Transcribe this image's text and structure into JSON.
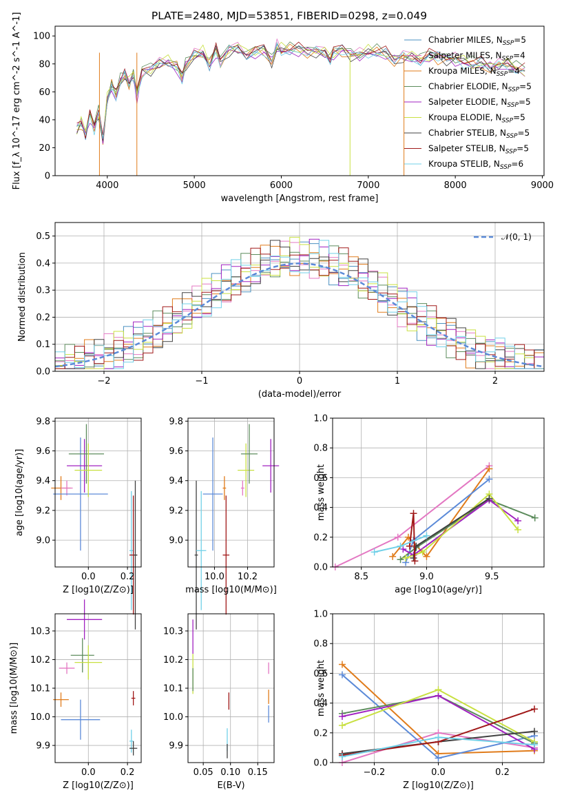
{
  "figure_title": "PLATE=2480, MJD=53851, FIBERID=0298, z=0.049",
  "models": [
    {
      "name": "Chabrier MILES",
      "n_ssp": "5",
      "color": "#4a90c0"
    },
    {
      "name": "Salpeter MILES",
      "n_ssp": "4",
      "color": "#e377c2"
    },
    {
      "name": "Kroupa MILES",
      "n_ssp": "4",
      "color": "#e07b1a"
    },
    {
      "name": "Chabrier ELODIE",
      "n_ssp": "5",
      "color": "#5b8b5b"
    },
    {
      "name": "Salpeter ELODIE",
      "n_ssp": "5",
      "color": "#a020c0"
    },
    {
      "name": "Kroupa ELODIE",
      "n_ssp": "5",
      "color": "#c8e040"
    },
    {
      "name": "Chabrier STELIB",
      "n_ssp": "5",
      "color": "#404040"
    },
    {
      "name": "Salpeter STELIB",
      "n_ssp": "5",
      "color": "#a01818"
    },
    {
      "name": "Kroupa STELIB",
      "n_ssp": "6",
      "color": "#70d0e8"
    }
  ],
  "chart_data": [
    {
      "id": "spectrum",
      "type": "line",
      "xlabel": "wavelength [Angstrom, rest frame]",
      "ylabel": "Flux [f_λ 10^-17 erg cm^-2 s^-1 A^-1]",
      "xlim": [
        3400,
        9020
      ],
      "ylim": [
        0,
        107
      ],
      "xticks": [
        4000,
        5000,
        6000,
        7000,
        8000,
        9000
      ],
      "yticks": [
        0,
        20,
        40,
        60,
        80,
        100
      ],
      "spectrum_x": [
        3650,
        3700,
        3750,
        3800,
        3850,
        3900,
        3950,
        4000,
        4050,
        4100,
        4150,
        4200,
        4250,
        4300,
        4340,
        4400,
        4500,
        4600,
        4700,
        4800,
        4860,
        4900,
        5000,
        5100,
        5175,
        5250,
        5300,
        5400,
        5500,
        5600,
        5700,
        5800,
        5890,
        5950,
        6000,
        6100,
        6200,
        6300,
        6400,
        6500,
        6563,
        6600,
        6700,
        6800,
        6900,
        7000,
        7100,
        7200,
        7300,
        7400,
        7500,
        7600,
        7700,
        7800,
        7900,
        8000,
        8100,
        8200,
        8300,
        8400,
        8500,
        8600,
        8700,
        8800
      ],
      "spectrum_y": [
        33,
        38,
        30,
        44,
        35,
        45,
        25,
        55,
        65,
        58,
        68,
        72,
        66,
        73,
        58,
        75,
        76,
        80,
        82,
        78,
        70,
        79,
        86,
        88,
        80,
        90,
        82,
        90,
        91,
        87,
        89,
        90,
        82,
        92,
        90,
        91,
        90,
        89,
        89,
        88,
        84,
        88,
        90,
        87,
        86,
        89,
        89,
        87,
        83,
        85,
        85,
        83,
        86,
        85,
        84,
        83,
        82,
        80,
        80,
        78,
        79,
        80,
        77,
        75
      ],
      "series_shift": [
        0,
        1.5,
        -1.5,
        2.5,
        -2.5,
        1,
        -1,
        2,
        -2
      ]
    },
    {
      "id": "residuals",
      "type": "line",
      "xlabel": "(data-model)/error",
      "ylabel": "Normed distribution",
      "xlim": [
        -2.5,
        2.5
      ],
      "ylim": [
        0,
        0.55
      ],
      "xticks": [
        -2,
        -1,
        0,
        1,
        2
      ],
      "yticks": [
        0.0,
        0.1,
        0.2,
        0.3,
        0.4,
        0.5
      ],
      "gaussian_label": "𝒩(0, 1)",
      "gaussian_color": "#5b8ad8"
    },
    {
      "id": "age_vs_Z",
      "type": "scatter",
      "xlabel": "Z [log10(Z/Z⊙)]",
      "ylabel": "age [log10(age/yr)]",
      "xlim": [
        -0.17,
        0.27
      ],
      "ylim": [
        8.82,
        9.82
      ],
      "xticks": [
        0.0,
        0.2
      ],
      "yticks": [
        9.0,
        9.2,
        9.4,
        9.6,
        9.8
      ],
      "points": [
        {
          "x": -0.14,
          "y": 9.35,
          "xerr": 0.05,
          "yerr": 0.08,
          "color": "#e07b1a"
        },
        {
          "x": -0.11,
          "y": 9.35,
          "xerr": 0.03,
          "yerr": 0.05,
          "color": "#e377c2"
        },
        {
          "x": -0.04,
          "y": 9.31,
          "xerr": 0.14,
          "yerr": 0.38,
          "color": "#5b8ad8"
        },
        {
          "x": -0.02,
          "y": 9.5,
          "xerr": 0.09,
          "yerr": 0.18,
          "color": "#a020c0"
        },
        {
          "x": -0.01,
          "y": 9.58,
          "xerr": 0.09,
          "yerr": 0.2,
          "color": "#5b8b5b"
        },
        {
          "x": 0.0,
          "y": 9.47,
          "xerr": 0.07,
          "yerr": 0.18,
          "color": "#c8e040"
        },
        {
          "x": 0.22,
          "y": 8.93,
          "xerr": 0.01,
          "yerr": 0.4,
          "color": "#70d0e8"
        },
        {
          "x": 0.23,
          "y": 8.9,
          "xerr": 0.02,
          "yerr": 0.4,
          "color": "#a01818"
        },
        {
          "x": 0.24,
          "y": 8.9,
          "xerr": 0.01,
          "yerr": 0.5,
          "color": "#404040"
        }
      ]
    },
    {
      "id": "age_vs_mass",
      "type": "scatter",
      "xlabel": "mass [log10(M/M⊙)]",
      "ylabel": "",
      "xlim": [
        9.84,
        10.36
      ],
      "ylim": [
        8.82,
        9.82
      ],
      "xticks": [
        10.0,
        10.2
      ],
      "yticks": [
        9.0,
        9.2,
        9.4,
        9.6,
        9.8
      ],
      "points": [
        {
          "x": 9.89,
          "y": 8.9,
          "xerr": 0.01,
          "yerr": 0.5,
          "color": "#404040"
        },
        {
          "x": 9.92,
          "y": 8.93,
          "xerr": 0.03,
          "yerr": 0.4,
          "color": "#70d0e8"
        },
        {
          "x": 9.99,
          "y": 9.31,
          "xerr": 0.06,
          "yerr": 0.38,
          "color": "#5b8ad8"
        },
        {
          "x": 10.06,
          "y": 9.35,
          "xerr": 0.01,
          "yerr": 0.08,
          "color": "#e07b1a"
        },
        {
          "x": 10.07,
          "y": 8.9,
          "xerr": 0.02,
          "yerr": 0.4,
          "color": "#a01818"
        },
        {
          "x": 10.17,
          "y": 9.35,
          "xerr": 0.01,
          "yerr": 0.05,
          "color": "#e377c2"
        },
        {
          "x": 10.19,
          "y": 9.47,
          "xerr": 0.05,
          "yerr": 0.18,
          "color": "#c8e040"
        },
        {
          "x": 10.21,
          "y": 9.58,
          "xerr": 0.05,
          "yerr": 0.2,
          "color": "#5b8b5b"
        },
        {
          "x": 10.34,
          "y": 9.5,
          "xerr": 0.05,
          "yerr": 0.18,
          "color": "#a020c0"
        }
      ]
    },
    {
      "id": "massweight_vs_age",
      "type": "line",
      "xlabel": "age [log10(age/yr)]",
      "ylabel": "mass weight",
      "xlim": [
        8.28,
        9.9
      ],
      "ylim": [
        0,
        1.0
      ],
      "xticks": [
        8.5,
        9.0,
        9.5
      ],
      "yticks": [
        0.0,
        0.2,
        0.4,
        0.6,
        0.8,
        1.0
      ],
      "lines": [
        {
          "color": "#e377c2",
          "x": [
            8.3,
            8.78,
            9.48
          ],
          "y": [
            0.0,
            0.2,
            0.68
          ]
        },
        {
          "color": "#e07b1a",
          "x": [
            8.74,
            8.86,
            9.0,
            9.48
          ],
          "y": [
            0.07,
            0.2,
            0.07,
            0.66
          ]
        },
        {
          "color": "#5b8ad8",
          "x": [
            8.84,
            8.9,
            9.48
          ],
          "y": [
            0.03,
            0.18,
            0.59
          ]
        },
        {
          "color": "#5b8b5b",
          "x": [
            8.8,
            8.92,
            9.48,
            9.83
          ],
          "y": [
            0.05,
            0.13,
            0.45,
            0.33
          ]
        },
        {
          "color": "#a020c0",
          "x": [
            8.82,
            8.9,
            9.48,
            9.7
          ],
          "y": [
            0.12,
            0.08,
            0.45,
            0.31
          ]
        },
        {
          "color": "#c8e040",
          "x": [
            8.84,
            8.97,
            9.48,
            9.7
          ],
          "y": [
            0.06,
            0.1,
            0.49,
            0.25
          ]
        },
        {
          "color": "#404040",
          "x": [
            8.9,
            8.92,
            9.48
          ],
          "y": [
            0.06,
            0.14,
            0.46
          ]
        },
        {
          "color": "#a01818",
          "x": [
            8.87,
            8.9,
            8.91
          ],
          "y": [
            0.14,
            0.36,
            0.04
          ]
        },
        {
          "color": "#70d0e8",
          "x": [
            8.6,
            8.8,
            9.0
          ],
          "y": [
            0.1,
            0.14,
            0.21
          ]
        }
      ]
    },
    {
      "id": "mass_vs_Z",
      "type": "scatter",
      "xlabel": "Z [log10(Z/Z⊙)]",
      "ylabel": "mass [log10(M/M⊙)]",
      "xlim": [
        -0.17,
        0.27
      ],
      "ylim": [
        9.84,
        10.36
      ],
      "xticks": [
        0.0,
        0.2
      ],
      "yticks": [
        9.9,
        10.0,
        10.1,
        10.2,
        10.3
      ],
      "points": [
        {
          "x": -0.14,
          "y": 10.06,
          "xerr": 0.04,
          "yerr": 0.025,
          "color": "#e07b1a"
        },
        {
          "x": -0.11,
          "y": 10.17,
          "xerr": 0.04,
          "yerr": 0.02,
          "color": "#e377c2"
        },
        {
          "x": -0.04,
          "y": 9.99,
          "xerr": 0.1,
          "yerr": 0.07,
          "color": "#5b8ad8"
        },
        {
          "x": -0.02,
          "y": 10.34,
          "xerr": 0.09,
          "yerr": 0.07,
          "color": "#a020c0"
        },
        {
          "x": -0.03,
          "y": 10.215,
          "xerr": 0.06,
          "yerr": 0.06,
          "color": "#5b8b5b"
        },
        {
          "x": 0.0,
          "y": 10.19,
          "xerr": 0.07,
          "yerr": 0.06,
          "color": "#c8e040"
        },
        {
          "x": 0.22,
          "y": 9.915,
          "xerr": 0.01,
          "yerr": 0.04,
          "color": "#70d0e8"
        },
        {
          "x": 0.23,
          "y": 10.065,
          "xerr": 0.01,
          "yerr": 0.025,
          "color": "#a01818"
        },
        {
          "x": 0.23,
          "y": 9.89,
          "xerr": 0.02,
          "yerr": 0.025,
          "color": "#404040"
        }
      ]
    },
    {
      "id": "mass_vs_ebv",
      "type": "scatter",
      "xlabel": "E(B-V)",
      "ylabel": "",
      "xlim": [
        0.022,
        0.18
      ],
      "ylim": [
        9.84,
        10.36
      ],
      "xticks": [
        0.05,
        0.1,
        0.15
      ],
      "yticks": [
        9.9,
        10.0,
        10.1,
        10.2,
        10.3
      ],
      "points": [
        {
          "x": 0.031,
          "y": 10.28,
          "xerr": 0,
          "yerr": 0.06,
          "color": "#a020c0"
        },
        {
          "x": 0.031,
          "y": 10.15,
          "xerr": 0,
          "yerr": 0.07,
          "color": "#c8e040"
        },
        {
          "x": 0.031,
          "y": 10.13,
          "xerr": 0,
          "yerr": 0.04,
          "color": "#5b8b5b"
        },
        {
          "x": 0.094,
          "y": 9.92,
          "xerr": 0,
          "yerr": 0.04,
          "color": "#70d0e8"
        },
        {
          "x": 0.094,
          "y": 9.88,
          "xerr": 0,
          "yerr": 0.025,
          "color": "#404040"
        },
        {
          "x": 0.097,
          "y": 10.055,
          "xerr": 0,
          "yerr": 0.03,
          "color": "#a01818"
        },
        {
          "x": 0.17,
          "y": 10.07,
          "xerr": 0,
          "yerr": 0.025,
          "color": "#e07b1a"
        },
        {
          "x": 0.17,
          "y": 10.17,
          "xerr": 0,
          "yerr": 0.02,
          "color": "#e377c2"
        },
        {
          "x": 0.17,
          "y": 10.01,
          "xerr": 0,
          "yerr": 0.03,
          "color": "#5b8ad8"
        }
      ]
    },
    {
      "id": "massweight_vs_Z",
      "type": "line",
      "xlabel": "Z [log10(Z/Z⊙)]",
      "ylabel": "mass weight",
      "xlim": [
        -0.33,
        0.33
      ],
      "ylim": [
        0,
        1.0
      ],
      "xticks": [
        -0.2,
        0.0,
        0.2
      ],
      "yticks": [
        0.0,
        0.2,
        0.4,
        0.6,
        0.8,
        1.0
      ],
      "lines": [
        {
          "color": "#e377c2",
          "x": [
            -0.3,
            0.0,
            0.3
          ],
          "y": [
            0.0,
            0.2,
            0.1
          ]
        },
        {
          "color": "#e07b1a",
          "x": [
            -0.3,
            0.0,
            0.3
          ],
          "y": [
            0.66,
            0.06,
            0.08
          ]
        },
        {
          "color": "#5b8ad8",
          "x": [
            -0.3,
            0.0,
            0.3
          ],
          "y": [
            0.59,
            0.03,
            0.18
          ]
        },
        {
          "color": "#5b8b5b",
          "x": [
            -0.3,
            0.0,
            0.3
          ],
          "y": [
            0.33,
            0.45,
            0.13
          ]
        },
        {
          "color": "#a020c0",
          "x": [
            -0.3,
            0.0,
            0.3
          ],
          "y": [
            0.31,
            0.45,
            0.09
          ]
        },
        {
          "color": "#c8e040",
          "x": [
            -0.3,
            0.0,
            0.3
          ],
          "y": [
            0.25,
            0.49,
            0.14
          ]
        },
        {
          "color": "#404040",
          "x": [
            -0.3,
            0.0,
            0.3
          ],
          "y": [
            0.06,
            0.14,
            0.21
          ]
        },
        {
          "color": "#a01818",
          "x": [
            -0.3,
            0.0,
            0.3
          ],
          "y": [
            0.05,
            0.14,
            0.36
          ]
        },
        {
          "color": "#70d0e8",
          "x": [
            -0.3,
            0.0,
            0.3
          ],
          "y": [
            0.04,
            0.17,
            0.12
          ]
        }
      ]
    }
  ]
}
